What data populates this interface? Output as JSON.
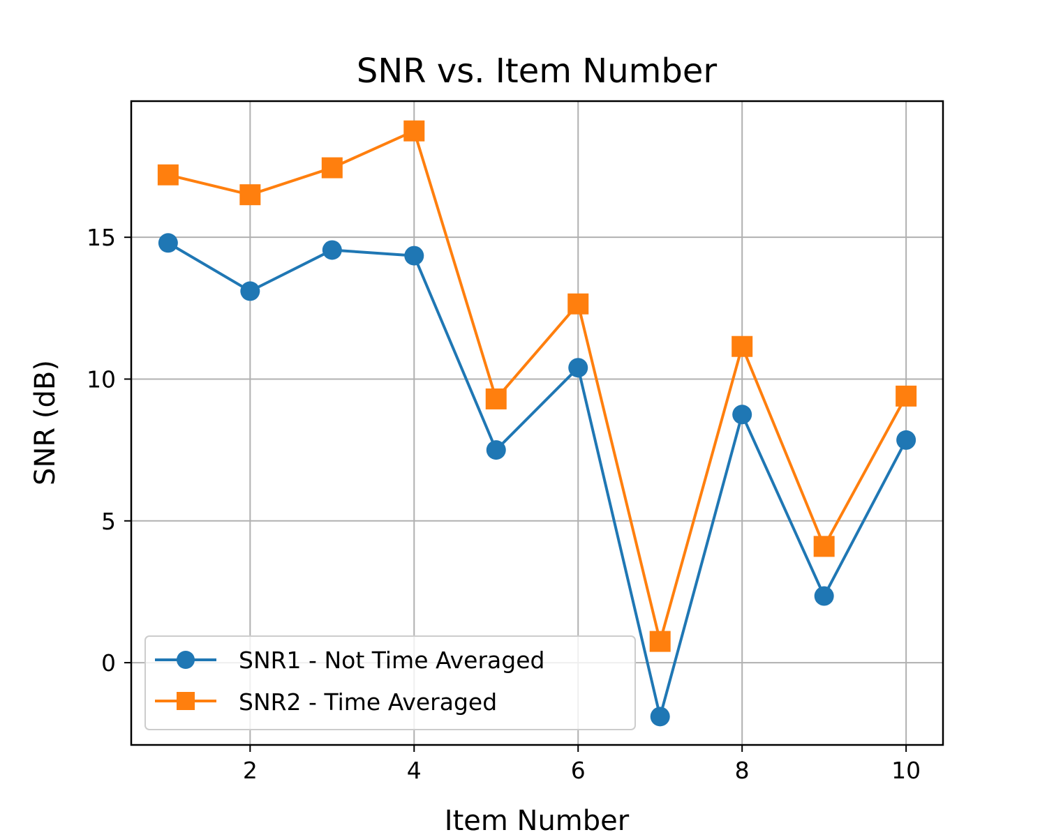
{
  "chart_data": {
    "type": "line",
    "title": "SNR vs. Item Number",
    "xlabel": "Item Number",
    "ylabel": "SNR (dB)",
    "xlim": [
      0.55,
      10.45
    ],
    "ylim": [
      -2.9,
      19.8
    ],
    "xticks": [
      2,
      4,
      6,
      8,
      10
    ],
    "yticks": [
      0,
      5,
      10,
      15
    ],
    "grid": true,
    "legend_position": "lower-left",
    "x": [
      1,
      2,
      3,
      4,
      5,
      6,
      7,
      8,
      9,
      10
    ],
    "series": [
      {
        "name": "SNR1 - Not Time Averaged",
        "color": "#1f77b4",
        "marker": "circle",
        "values": [
          14.8,
          13.1,
          14.55,
          14.35,
          7.5,
          10.4,
          -1.9,
          8.75,
          2.35,
          7.85
        ]
      },
      {
        "name": "SNR2 - Time Averaged",
        "color": "#ff7f0e",
        "marker": "square",
        "values": [
          17.2,
          16.5,
          17.45,
          18.75,
          9.3,
          12.65,
          0.75,
          11.15,
          4.1,
          9.4
        ]
      }
    ]
  }
}
